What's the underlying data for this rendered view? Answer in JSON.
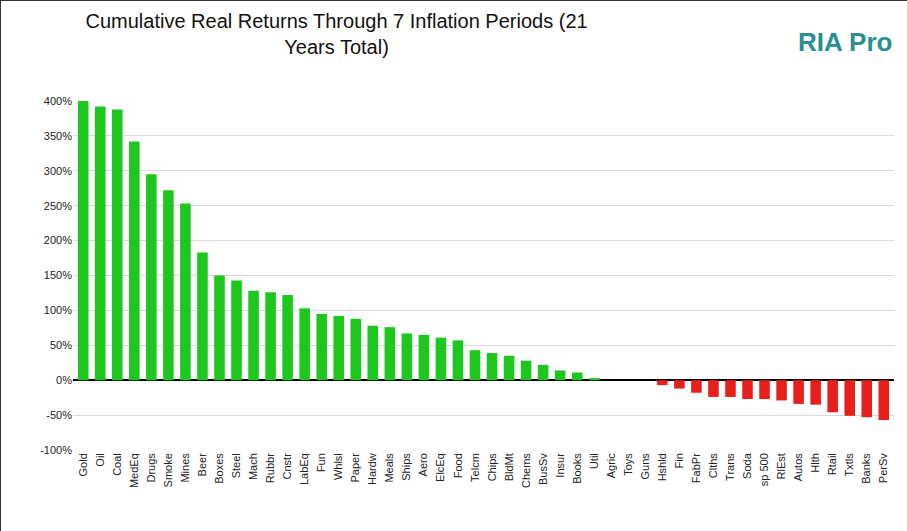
{
  "chart_data": {
    "type": "bar",
    "title": "Cumulative Real Returns Through 7 Inflation Periods (21 Years Total)",
    "annotations": [
      {
        "text": "RIA Pro"
      }
    ],
    "categories": [
      "Gold",
      "Oil",
      "Coal",
      "MedEq",
      "Drugs",
      "Smoke",
      "Mines",
      "Beer",
      "Boxes",
      "Steel",
      "Mach",
      "Rubbr",
      "Cnstr",
      "LabEq",
      "Fun",
      "Whlsl",
      "Paper",
      "Hardw",
      "Meals",
      "Ships",
      "Aero",
      "ElcEq",
      "Food",
      "Telcm",
      "Chips",
      "BldMt",
      "Chems",
      "BusSv",
      "Insur",
      "Books",
      "Util",
      "Agric",
      "Toys",
      "Guns",
      "Hshld",
      "Fin",
      "FabPr",
      "Clths",
      "Trans",
      "Soda",
      "sp 500",
      "RlEst",
      "Autos",
      "Hlth",
      "Rtail",
      "Txtls",
      "Banks",
      "PerSv"
    ],
    "values": [
      400,
      392,
      388,
      342,
      295,
      272,
      253,
      183,
      150,
      143,
      128,
      126,
      122,
      103,
      95,
      92,
      88,
      78,
      76,
      67,
      65,
      61,
      57,
      43,
      39,
      35,
      28,
      22,
      14,
      11,
      3,
      0,
      0,
      0,
      -7,
      -12,
      -18,
      -24,
      -24,
      -27,
      -27,
      -29,
      -34,
      -35,
      -46,
      -51,
      -53,
      -57
    ],
    "colors": [
      "#1ec71e",
      "#1ec71e",
      "#1ec71e",
      "#1ec71e",
      "#1ec71e",
      "#1ec71e",
      "#1ec71e",
      "#1ec71e",
      "#1ec71e",
      "#1ec71e",
      "#1ec71e",
      "#1ec71e",
      "#1ec71e",
      "#1ec71e",
      "#1ec71e",
      "#1ec71e",
      "#1ec71e",
      "#1ec71e",
      "#1ec71e",
      "#1ec71e",
      "#1ec71e",
      "#1ec71e",
      "#1ec71e",
      "#1ec71e",
      "#1ec71e",
      "#1ec71e",
      "#1ec71e",
      "#1ec71e",
      "#1ec71e",
      "#1ec71e",
      "#1ec71e",
      "#1ec71e",
      "#1ec71e",
      "#e8201c",
      "#e8201c",
      "#e8201c",
      "#e8201c",
      "#e8201c",
      "#e8201c",
      "#e8201c",
      "#e8201c",
      "#e8201c",
      "#e8201c",
      "#e8201c",
      "#e8201c",
      "#e8201c",
      "#e8201c",
      "#e8201c"
    ],
    "ylim": [
      -100,
      400
    ],
    "yticks": [
      {
        "value": -100,
        "label": "-100%"
      },
      {
        "value": -50,
        "label": "-50%"
      },
      {
        "value": 0,
        "label": "0%"
      },
      {
        "value": 50,
        "label": "50%"
      },
      {
        "value": 100,
        "label": "100%"
      },
      {
        "value": 150,
        "label": "150%"
      },
      {
        "value": 200,
        "label": "200%"
      },
      {
        "value": 250,
        "label": "250%"
      },
      {
        "value": 300,
        "label": "300%"
      },
      {
        "value": 350,
        "label": "350%"
      },
      {
        "value": 400,
        "label": "400%"
      }
    ],
    "grid": true
  }
}
